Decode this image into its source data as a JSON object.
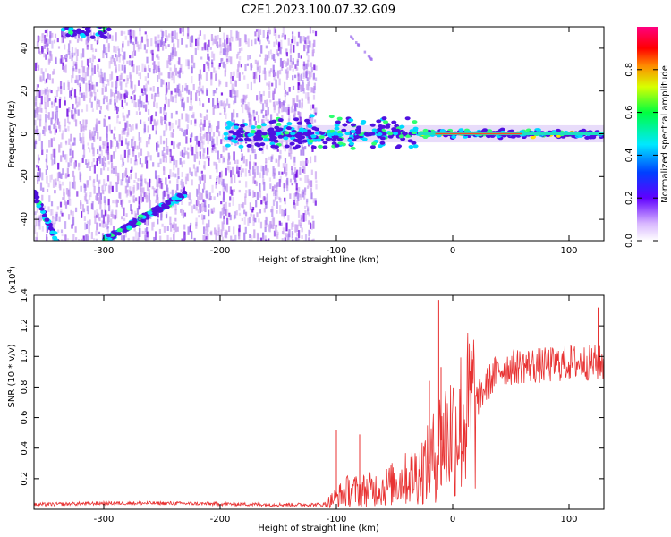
{
  "title": "C2E1.2023.100.07.32.G09",
  "colors": {
    "snr_line": "#e83232",
    "spec_main": "#6a00e0",
    "spec_light": "#c8a0f0"
  },
  "chart_data": [
    {
      "type": "heatmap",
      "name": "spectrogram",
      "xlabel": "Height of straight line (km)",
      "ylabel": "Frequency (Hz)",
      "xlim": [
        -360,
        130
      ],
      "ylim": [
        -50,
        50
      ],
      "x_ticks": [
        -300,
        -200,
        -100,
        0,
        100
      ],
      "x_tick_labels": [
        "-300",
        "-200",
        "-100",
        "0",
        "100"
      ],
      "y_ticks": [
        -40,
        -20,
        0,
        20,
        40
      ],
      "y_tick_labels": [
        "-40",
        "-20",
        "0",
        "20",
        "40"
      ],
      "colorbar": {
        "label": "Normalized spectral amplitude",
        "range": [
          0,
          1
        ],
        "ticks": [
          0.0,
          0.2,
          0.4,
          0.6,
          0.8
        ],
        "tick_labels": [
          "0.0",
          "0.2",
          "0.4",
          "0.6",
          "0.8"
        ],
        "colormap": "rainbow (white → violet → blue → cyan → green → yellow → red → magenta)"
      },
      "features": {
        "noise_region_km": [
          -360,
          -118
        ],
        "main_line_hz": 0,
        "descending_trace": [
          [
            -300,
            -50
          ],
          [
            -230,
            -28
          ]
        ],
        "upper_left_trace": [
          [
            -335,
            48
          ],
          [
            -295,
            48
          ]
        ],
        "lower_left_trace": [
          [
            -360,
            -28
          ],
          [
            -340,
            -50
          ]
        ],
        "faint_trace": [
          [
            -90,
            47
          ],
          [
            -70,
            35
          ]
        ]
      }
    },
    {
      "type": "line",
      "name": "snr",
      "xlabel": "Height of straight line (km)",
      "ylabel": "SNR (10 * v/v)",
      "y_multiplier_label": "(x10^4)",
      "xlim": [
        -360,
        130
      ],
      "ylim": [
        0,
        1.4
      ],
      "x_ticks": [
        -300,
        -200,
        -100,
        0,
        100
      ],
      "x_tick_labels": [
        "-300",
        "-200",
        "-100",
        "0",
        "100"
      ],
      "y_ticks": [
        0.2,
        0.4,
        0.6,
        0.8,
        1.0,
        1.2,
        1.4
      ],
      "y_tick_labels": [
        "0.2",
        "0.4",
        "0.6",
        "0.8",
        "1.0",
        "1.2",
        "1.4"
      ],
      "series": [
        {
          "x": [
            -360,
            -300,
            -250,
            -200,
            -150,
            -110,
            -100,
            -90,
            -80,
            -60,
            -40,
            -30,
            -20,
            -15,
            -10,
            0,
            10,
            20,
            30,
            40,
            60,
            80,
            100,
            120,
            130
          ],
          "y": [
            0.03,
            0.04,
            0.04,
            0.035,
            0.03,
            0.03,
            0.08,
            0.12,
            0.12,
            0.14,
            0.2,
            0.24,
            0.3,
            0.36,
            0.45,
            0.52,
            0.6,
            0.7,
            0.82,
            0.92,
            0.94,
            0.94,
            0.96,
            0.96,
            0.95
          ]
        }
      ],
      "spikes": [
        [
          -12,
          1.37
        ],
        [
          -10,
          0.93
        ],
        [
          -20,
          0.84
        ],
        [
          -80,
          0.49
        ],
        [
          -100,
          0.52
        ],
        [
          125,
          1.32
        ]
      ]
    }
  ]
}
